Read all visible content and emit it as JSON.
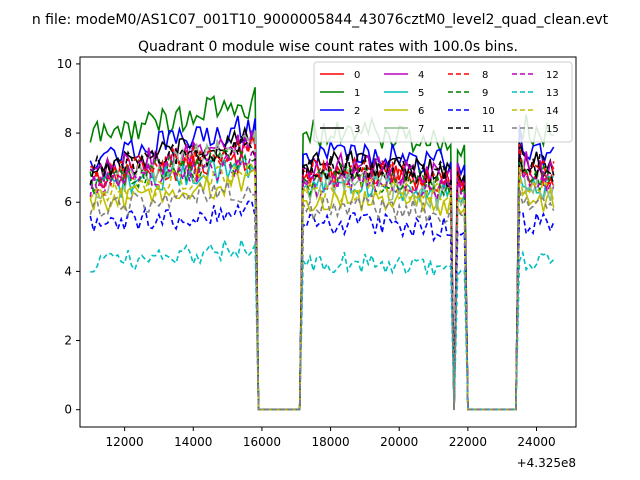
{
  "chart_data": {
    "type": "line",
    "suptitle": "n file: modeM0/AS1C07_001T10_9000005844_43076cztM0_level2_quad_clean.evt",
    "title": "Quadrant 0 module wise count rates with 100.0s bins.",
    "xlabel": "",
    "ylabel": "",
    "x_offset_label": "+4.325e8",
    "xlim": [
      10700,
      25150
    ],
    "ylim": [
      -0.5,
      10.2
    ],
    "x_ticks": [
      12000,
      14000,
      16000,
      18000,
      20000,
      22000,
      24000
    ],
    "x_tick_labels": [
      "12000",
      "14000",
      "16000",
      "18000",
      "20000",
      "22000",
      "24000"
    ],
    "y_ticks": [
      0,
      2,
      4,
      6,
      8,
      10
    ],
    "y_tick_labels": [
      "0",
      "2",
      "4",
      "6",
      "8",
      "10"
    ],
    "x_start": 11000,
    "x_step": 100,
    "segments": [
      [
        11000,
        15800
      ],
      [
        17200,
        21500
      ],
      [
        21700,
        21900
      ],
      [
        23500,
        24500
      ]
    ],
    "gaps_to_zero": [
      [
        15800,
        16000,
        17000,
        17200
      ],
      [
        21500,
        21700,
        21700,
        21700
      ],
      [
        21900,
        22100,
        23300,
        23500
      ]
    ],
    "legend_location": "upper right",
    "series": [
      {
        "name": "0",
        "color": "#ff0000",
        "dash": "solid",
        "level": 6.7,
        "trend": 0.5,
        "amp": 0.35
      },
      {
        "name": "1",
        "color": "#008000",
        "dash": "solid",
        "level": 7.9,
        "trend": 1.0,
        "amp": 0.45
      },
      {
        "name": "2",
        "color": "#0000ff",
        "dash": "solid",
        "level": 7.3,
        "trend": 0.9,
        "amp": 0.4
      },
      {
        "name": "3",
        "color": "#000000",
        "dash": "solid",
        "level": 7.0,
        "trend": 0.8,
        "amp": 0.4
      },
      {
        "name": "4",
        "color": "#bf00bf",
        "dash": "solid",
        "level": 6.9,
        "trend": 0.8,
        "amp": 0.4
      },
      {
        "name": "5",
        "color": "#00bfbf",
        "dash": "solid",
        "level": 6.4,
        "trend": 0.7,
        "amp": 0.4
      },
      {
        "name": "6",
        "color": "#bfbf00",
        "dash": "solid",
        "level": 6.0,
        "trend": 0.6,
        "amp": 0.35
      },
      {
        "name": "7",
        "color": "#8fbc8f",
        "dash": "solid",
        "level": 6.4,
        "trend": 1.4,
        "amp": 0.45
      },
      {
        "name": "8",
        "color": "#ff0000",
        "dash": "dashed",
        "level": 6.8,
        "trend": 0.8,
        "amp": 0.4
      },
      {
        "name": "9",
        "color": "#008000",
        "dash": "dashed",
        "level": 6.6,
        "trend": 0.7,
        "amp": 0.4
      },
      {
        "name": "10",
        "color": "#0000ff",
        "dash": "dashed",
        "level": 5.3,
        "trend": 0.5,
        "amp": 0.35
      },
      {
        "name": "11",
        "color": "#000000",
        "dash": "dashed",
        "level": 6.9,
        "trend": 0.8,
        "amp": 0.4
      },
      {
        "name": "12",
        "color": "#bf00bf",
        "dash": "dashed",
        "level": 6.5,
        "trend": 0.7,
        "amp": 0.4
      },
      {
        "name": "13",
        "color": "#00bfbf",
        "dash": "dashed",
        "level": 4.2,
        "trend": 0.5,
        "amp": 0.3
      },
      {
        "name": "14",
        "color": "#bfbf00",
        "dash": "dashed",
        "level": 6.3,
        "trend": 0.6,
        "amp": 0.35
      },
      {
        "name": "15",
        "color": "#808080",
        "dash": "dashed",
        "level": 5.8,
        "trend": 0.6,
        "amp": 0.35
      }
    ]
  }
}
